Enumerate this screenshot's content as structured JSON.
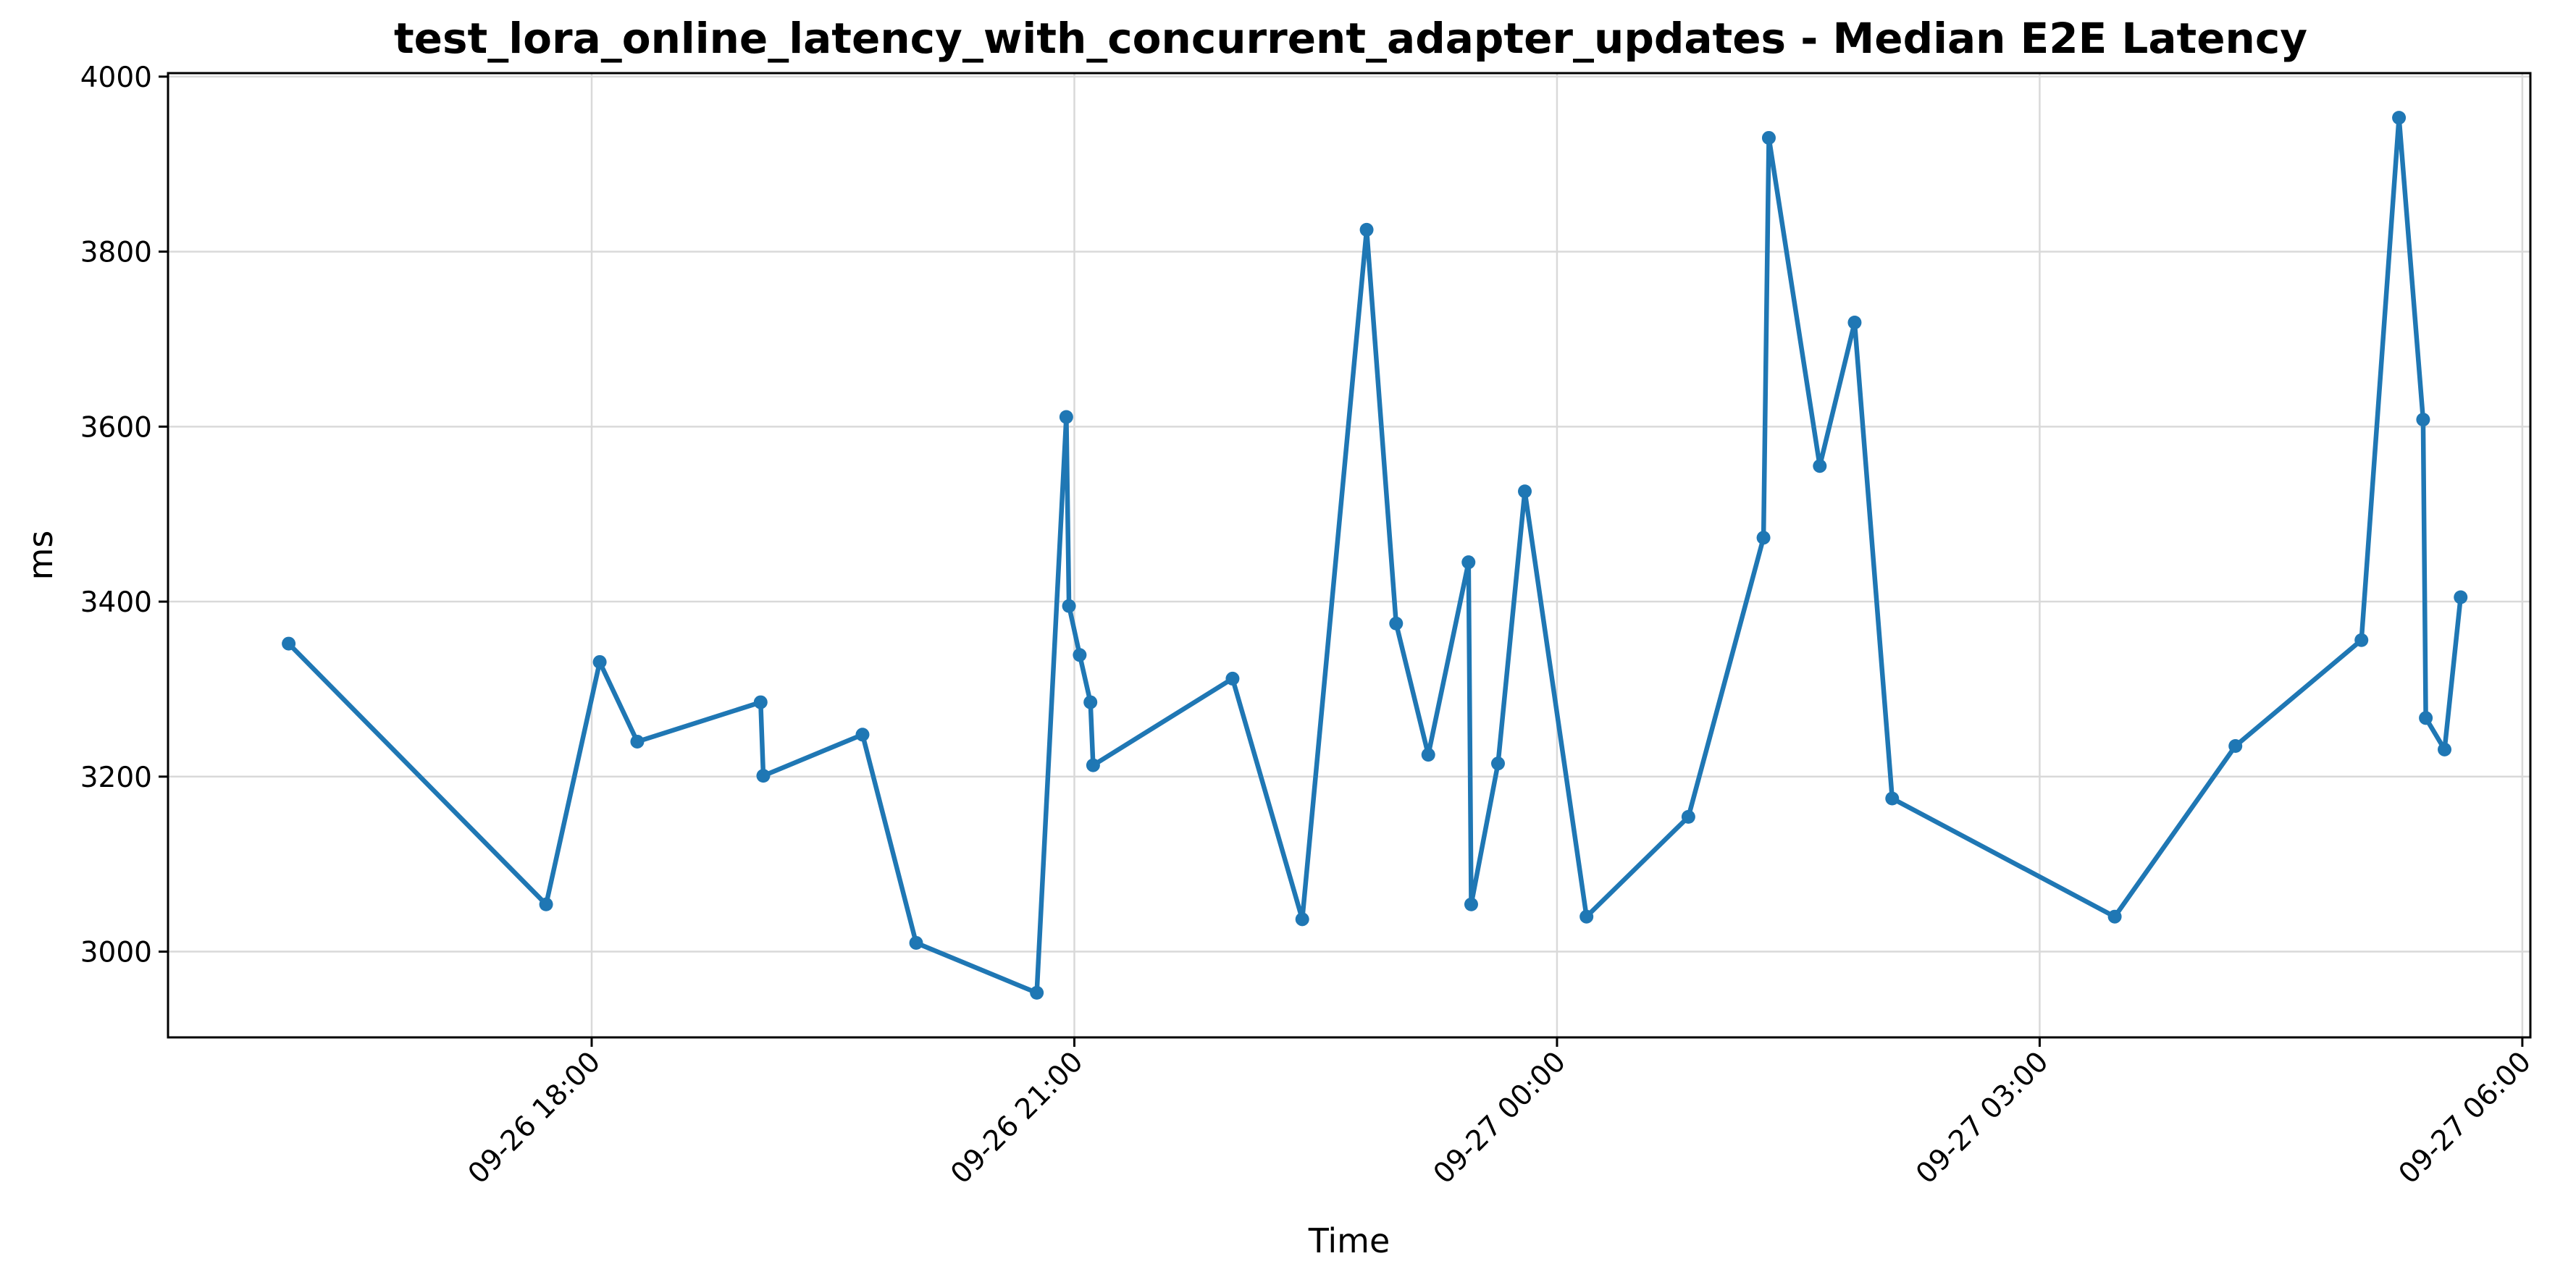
{
  "chart_data": {
    "type": "line",
    "title": "test_lora_online_latency_with_concurrent_adapter_updates - Median E2E Latency",
    "xlabel": "Time",
    "ylabel": "ms",
    "ylim": [
      2902,
      4004
    ],
    "xlim": [
      "09-26 15:22",
      "09-27 06:03"
    ],
    "grid": true,
    "legend": "none",
    "color": "#1f77b4",
    "x_ticks": [
      "09-26 18:00",
      "09-26 21:00",
      "09-27 00:00",
      "09-27 03:00",
      "09-27 06:00"
    ],
    "y_ticks": [
      3000,
      3200,
      3400,
      3600,
      3800,
      4000
    ],
    "x": [
      "09-26 16:07",
      "09-26 17:43",
      "09-26 18:03",
      "09-26 18:17",
      "09-26 19:03",
      "09-26 19:04",
      "09-26 19:41",
      "09-26 20:01",
      "09-26 20:46",
      "09-26 20:57",
      "09-26 20:58",
      "09-26 21:02",
      "09-26 21:06",
      "09-26 21:07",
      "09-26 21:59",
      "09-26 22:25",
      "09-26 22:49",
      "09-26 23:00",
      "09-26 23:12",
      "09-26 23:27",
      "09-26 23:28",
      "09-26 23:38",
      "09-26 23:48",
      "09-27 00:11",
      "09-27 00:49",
      "09-27 01:17",
      "09-27 01:19",
      "09-27 01:38",
      "09-27 01:51",
      "09-27 02:05",
      "09-27 03:28",
      "09-27 04:13",
      "09-27 05:00",
      "09-27 05:14",
      "09-27 05:23",
      "09-27 05:24",
      "09-27 05:31",
      "09-27 05:37"
    ],
    "series": [
      {
        "values": [
          3352,
          3054,
          3331,
          3240,
          3285,
          3201,
          3248,
          3010,
          2953,
          3611,
          3395,
          3339,
          3285,
          3213,
          3312,
          3037,
          3825,
          3375,
          3225,
          3445,
          3054,
          3215,
          3526,
          3040,
          3154,
          3473,
          3930,
          3555,
          3719,
          3175,
          3040,
          3235,
          3356,
          3953,
          3608,
          3267,
          3231,
          3405
        ]
      }
    ]
  }
}
